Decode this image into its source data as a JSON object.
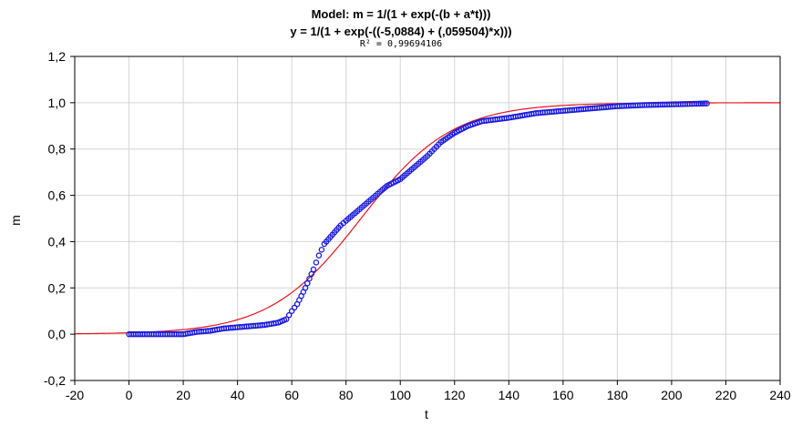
{
  "chart_data": {
    "type": "scatter",
    "title": "Model: m = 1/(1 + exp(-(b + a*t)))",
    "subtitle": "y = 1/(1 + exp(-((-5,0884) + (,059504)*x)))",
    "r2_label": "R² = 0,99694106",
    "xlabel": "t",
    "ylabel": "m",
    "xlim": [
      -20,
      240
    ],
    "ylim": [
      -0.2,
      1.2
    ],
    "x_ticks": [
      -20,
      0,
      20,
      40,
      60,
      80,
      100,
      120,
      140,
      160,
      180,
      200,
      220,
      240
    ],
    "x_tick_labels": [
      "-20",
      "0",
      "20",
      "40",
      "60",
      "80",
      "100",
      "120",
      "140",
      "160",
      "180",
      "200",
      "220",
      "240"
    ],
    "y_ticks": [
      -0.2,
      0.0,
      0.2,
      0.4,
      0.6,
      0.8,
      1.0,
      1.2
    ],
    "y_tick_labels": [
      "-0,2",
      "0,0",
      "0,2",
      "0,4",
      "0,6",
      "0,8",
      "1,0",
      "1,2"
    ],
    "grid": true,
    "model": {
      "b": -5.0884,
      "a": 0.059504,
      "color": "#e8141c"
    },
    "points_color": "#1a1adc",
    "observed": [
      [
        0,
        0.0
      ],
      [
        10,
        0.0
      ],
      [
        20,
        0.0
      ],
      [
        25,
        0.01
      ],
      [
        30,
        0.015
      ],
      [
        35,
        0.025
      ],
      [
        40,
        0.03
      ],
      [
        45,
        0.035
      ],
      [
        50,
        0.04
      ],
      [
        55,
        0.05
      ],
      [
        58,
        0.065
      ],
      [
        60,
        0.1
      ],
      [
        62,
        0.13
      ],
      [
        65,
        0.2
      ],
      [
        68,
        0.28
      ],
      [
        70,
        0.34
      ],
      [
        72,
        0.39
      ],
      [
        75,
        0.43
      ],
      [
        78,
        0.47
      ],
      [
        80,
        0.49
      ],
      [
        85,
        0.54
      ],
      [
        90,
        0.59
      ],
      [
        95,
        0.64
      ],
      [
        100,
        0.67
      ],
      [
        105,
        0.72
      ],
      [
        110,
        0.77
      ],
      [
        115,
        0.83
      ],
      [
        120,
        0.87
      ],
      [
        125,
        0.9
      ],
      [
        130,
        0.92
      ],
      [
        140,
        0.935
      ],
      [
        150,
        0.955
      ],
      [
        160,
        0.965
      ],
      [
        170,
        0.975
      ],
      [
        180,
        0.985
      ],
      [
        190,
        0.99
      ],
      [
        200,
        0.993
      ],
      [
        210,
        0.996
      ],
      [
        213,
        0.997
      ]
    ]
  }
}
